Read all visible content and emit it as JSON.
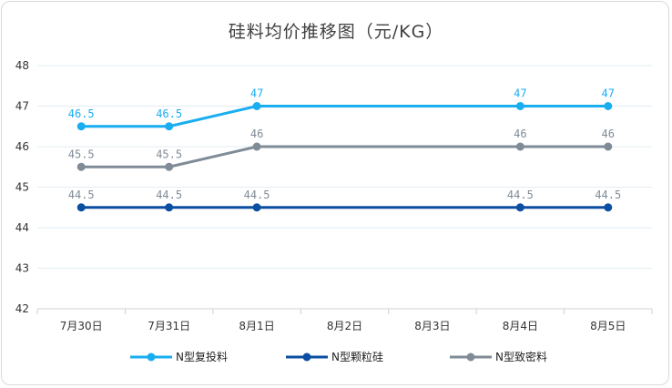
{
  "chart_data": {
    "type": "line",
    "title": "硅料均价推移图（元/KG）",
    "categories": [
      "7月30日",
      "7月31日",
      "8月1日",
      "8月2日",
      "8月3日",
      "8月4日",
      "8月5日"
    ],
    "ylim": [
      42,
      48
    ],
    "yticks": [
      42,
      43,
      44,
      45,
      46,
      47,
      48
    ],
    "grid": true,
    "legend_position": "bottom",
    "series": [
      {
        "name": "N型复投料",
        "color": "#19aef0",
        "values": [
          46.5,
          46.5,
          47,
          47,
          47,
          47,
          47
        ],
        "labels": [
          "46.5",
          "46.5",
          "47",
          "",
          "",
          "47",
          "47"
        ]
      },
      {
        "name": "N型颗粒硅",
        "color": "#0b4ea2",
        "values": [
          44.5,
          44.5,
          44.5,
          44.5,
          44.5,
          44.5,
          44.5
        ],
        "labels": [
          "44.5",
          "44.5",
          "44.5",
          "",
          "",
          "44.5",
          "44.5"
        ]
      },
      {
        "name": "N型致密料",
        "color": "#7f8b97",
        "values": [
          45.5,
          45.5,
          46,
          46,
          46,
          46,
          46
        ],
        "labels": [
          "45.5",
          "45.5",
          "46",
          "",
          "",
          "46",
          "46"
        ]
      }
    ]
  }
}
